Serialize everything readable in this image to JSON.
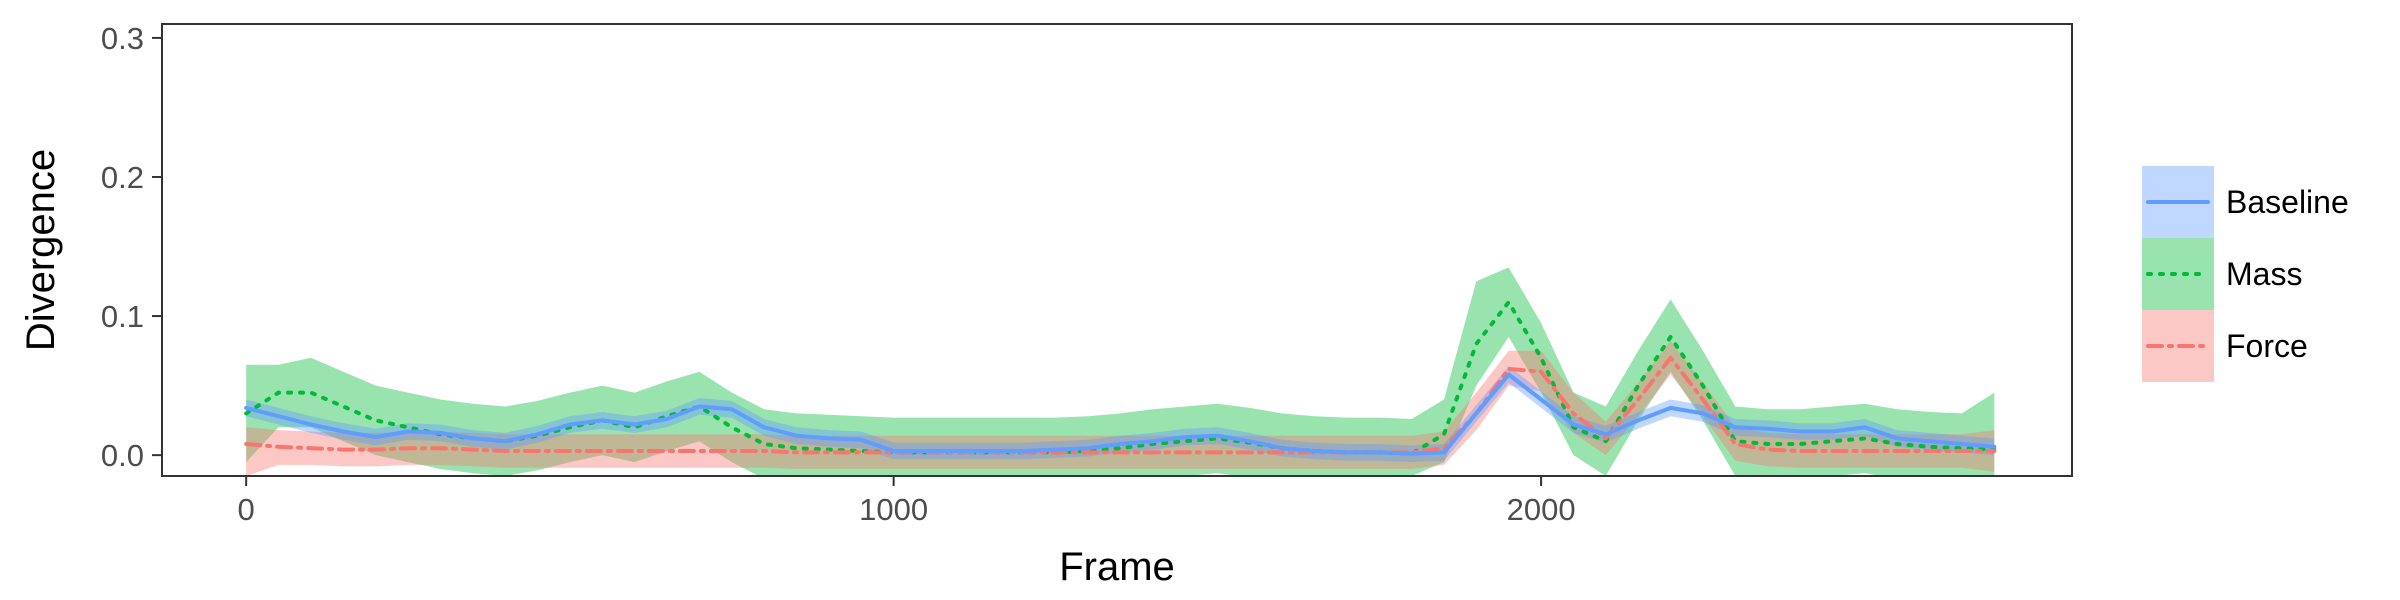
{
  "chart_data": {
    "type": "line",
    "xlabel": "Frame",
    "ylabel": "Divergence",
    "xlim": [
      -130,
      2820
    ],
    "ylim": [
      -0.015,
      0.31
    ],
    "xticks": [
      0,
      1000,
      2000
    ],
    "xtick_labels": [
      "0",
      "1000",
      "2000"
    ],
    "yticks": [
      0,
      0.1,
      0.2,
      0.3
    ],
    "ytick_labels": [
      "0.0",
      "0.1",
      "0.2",
      "0.3"
    ],
    "grid": false,
    "legend_position": "right",
    "x": [
      0,
      50,
      100,
      150,
      200,
      250,
      300,
      350,
      400,
      450,
      500,
      550,
      600,
      650,
      700,
      750,
      800,
      850,
      900,
      950,
      1000,
      1050,
      1100,
      1150,
      1200,
      1250,
      1300,
      1350,
      1400,
      1450,
      1500,
      1550,
      1600,
      1650,
      1700,
      1750,
      1800,
      1850,
      1900,
      1950,
      2000,
      2050,
      2100,
      2150,
      2200,
      2250,
      2300,
      2350,
      2400,
      2450,
      2500,
      2550,
      2600,
      2650,
      2700
    ],
    "series": [
      {
        "name": "Baseline",
        "color": "#619cff",
        "style": "solid",
        "values": [
          0.034,
          0.028,
          0.022,
          0.017,
          0.013,
          0.017,
          0.016,
          0.012,
          0.01,
          0.015,
          0.022,
          0.025,
          0.022,
          0.026,
          0.035,
          0.033,
          0.02,
          0.014,
          0.012,
          0.011,
          0.003,
          0.003,
          0.003,
          0.003,
          0.003,
          0.004,
          0.005,
          0.008,
          0.01,
          0.013,
          0.014,
          0.01,
          0.005,
          0.003,
          0.002,
          0.002,
          0.001,
          0.002,
          0.03,
          0.058,
          0.04,
          0.022,
          0.015,
          0.025,
          0.034,
          0.03,
          0.02,
          0.019,
          0.017,
          0.017,
          0.02,
          0.012,
          0.01,
          0.008,
          0.006
        ],
        "lower": [
          0.028,
          0.022,
          0.016,
          0.011,
          0.007,
          0.011,
          0.01,
          0.006,
          0.004,
          0.009,
          0.016,
          0.019,
          0.016,
          0.02,
          0.029,
          0.027,
          0.014,
          0.008,
          0.006,
          0.005,
          -0.003,
          -0.003,
          -0.003,
          -0.003,
          -0.003,
          -0.002,
          -0.001,
          0.002,
          0.004,
          0.007,
          0.008,
          0.004,
          -0.001,
          -0.003,
          -0.004,
          -0.004,
          -0.005,
          -0.004,
          0.024,
          0.052,
          0.034,
          0.016,
          0.009,
          0.019,
          0.028,
          0.024,
          0.014,
          0.013,
          0.011,
          0.011,
          0.014,
          0.006,
          0.004,
          0.002,
          0.0
        ],
        "upper": [
          0.04,
          0.034,
          0.028,
          0.023,
          0.019,
          0.023,
          0.022,
          0.018,
          0.016,
          0.021,
          0.028,
          0.031,
          0.028,
          0.032,
          0.041,
          0.039,
          0.026,
          0.02,
          0.018,
          0.017,
          0.009,
          0.009,
          0.009,
          0.009,
          0.009,
          0.01,
          0.011,
          0.014,
          0.016,
          0.019,
          0.02,
          0.016,
          0.011,
          0.009,
          0.008,
          0.008,
          0.007,
          0.008,
          0.036,
          0.064,
          0.046,
          0.028,
          0.021,
          0.031,
          0.04,
          0.036,
          0.026,
          0.025,
          0.023,
          0.023,
          0.026,
          0.018,
          0.016,
          0.014,
          0.012
        ]
      },
      {
        "name": "Mass",
        "color": "#00ba38",
        "style": "dotted",
        "values": [
          0.03,
          0.045,
          0.045,
          0.035,
          0.025,
          0.02,
          0.015,
          0.012,
          0.01,
          0.014,
          0.02,
          0.025,
          0.02,
          0.028,
          0.035,
          0.02,
          0.008,
          0.005,
          0.004,
          0.003,
          0.002,
          0.002,
          0.002,
          0.002,
          0.002,
          0.002,
          0.003,
          0.005,
          0.008,
          0.01,
          0.012,
          0.009,
          0.005,
          0.003,
          0.002,
          0.002,
          0.001,
          0.015,
          0.08,
          0.11,
          0.07,
          0.02,
          0.01,
          0.05,
          0.085,
          0.05,
          0.01,
          0.008,
          0.008,
          0.01,
          0.012,
          0.008,
          0.006,
          0.005,
          0.004
        ],
        "lower": [
          -0.005,
          0.02,
          0.02,
          0.01,
          0.0,
          -0.005,
          -0.01,
          -0.013,
          -0.015,
          -0.011,
          -0.005,
          0.0,
          -0.005,
          0.003,
          0.01,
          -0.005,
          -0.017,
          -0.02,
          -0.021,
          -0.022,
          -0.023,
          -0.023,
          -0.023,
          -0.023,
          -0.023,
          -0.023,
          -0.022,
          -0.02,
          -0.017,
          -0.015,
          -0.013,
          -0.016,
          -0.02,
          -0.022,
          -0.023,
          -0.023,
          -0.015,
          -0.005,
          0.05,
          0.085,
          0.045,
          0.0,
          -0.015,
          0.025,
          0.06,
          0.025,
          -0.015,
          -0.017,
          -0.017,
          -0.015,
          -0.013,
          -0.017,
          -0.019,
          -0.02,
          -0.021
        ],
        "upper": [
          0.065,
          0.065,
          0.07,
          0.06,
          0.05,
          0.045,
          0.04,
          0.037,
          0.035,
          0.039,
          0.045,
          0.05,
          0.045,
          0.053,
          0.06,
          0.045,
          0.033,
          0.03,
          0.029,
          0.028,
          0.027,
          0.027,
          0.027,
          0.027,
          0.027,
          0.027,
          0.028,
          0.03,
          0.033,
          0.035,
          0.037,
          0.034,
          0.03,
          0.028,
          0.027,
          0.027,
          0.026,
          0.04,
          0.125,
          0.135,
          0.095,
          0.045,
          0.035,
          0.075,
          0.112,
          0.075,
          0.035,
          0.033,
          0.033,
          0.035,
          0.037,
          0.033,
          0.031,
          0.03,
          0.045
        ]
      },
      {
        "name": "Force",
        "color": "#f8766d",
        "style": "dashdot",
        "values": [
          0.008,
          0.006,
          0.005,
          0.004,
          0.004,
          0.005,
          0.005,
          0.004,
          0.003,
          0.003,
          0.003,
          0.003,
          0.003,
          0.003,
          0.003,
          0.003,
          0.003,
          0.002,
          0.002,
          0.002,
          0.002,
          0.002,
          0.002,
          0.002,
          0.002,
          0.002,
          0.002,
          0.002,
          0.002,
          0.002,
          0.002,
          0.002,
          0.002,
          0.002,
          0.002,
          0.002,
          0.002,
          0.005,
          0.03,
          0.062,
          0.06,
          0.03,
          0.012,
          0.04,
          0.07,
          0.04,
          0.008,
          0.004,
          0.003,
          0.003,
          0.003,
          0.003,
          0.003,
          0.003,
          0.003
        ],
        "lower": [
          -0.015,
          -0.007,
          -0.007,
          -0.008,
          -0.008,
          -0.007,
          -0.007,
          -0.008,
          -0.009,
          -0.009,
          -0.009,
          -0.009,
          -0.009,
          -0.009,
          -0.009,
          -0.009,
          -0.009,
          -0.01,
          -0.01,
          -0.01,
          -0.01,
          -0.01,
          -0.01,
          -0.01,
          -0.01,
          -0.01,
          -0.01,
          -0.01,
          -0.01,
          -0.01,
          -0.01,
          -0.01,
          -0.01,
          -0.01,
          -0.01,
          -0.01,
          -0.01,
          -0.007,
          0.018,
          0.05,
          0.046,
          0.016,
          0.0,
          0.028,
          0.058,
          0.028,
          -0.004,
          -0.008,
          -0.009,
          -0.009,
          -0.009,
          -0.009,
          -0.009,
          -0.009,
          -0.012
        ],
        "upper": [
          0.02,
          0.018,
          0.017,
          0.016,
          0.016,
          0.017,
          0.017,
          0.016,
          0.015,
          0.015,
          0.015,
          0.015,
          0.015,
          0.015,
          0.015,
          0.015,
          0.015,
          0.014,
          0.014,
          0.014,
          0.014,
          0.014,
          0.014,
          0.014,
          0.014,
          0.014,
          0.014,
          0.014,
          0.014,
          0.014,
          0.014,
          0.014,
          0.014,
          0.014,
          0.014,
          0.014,
          0.014,
          0.017,
          0.045,
          0.075,
          0.075,
          0.045,
          0.024,
          0.052,
          0.082,
          0.052,
          0.02,
          0.016,
          0.015,
          0.015,
          0.015,
          0.015,
          0.015,
          0.015,
          0.018
        ]
      }
    ]
  }
}
